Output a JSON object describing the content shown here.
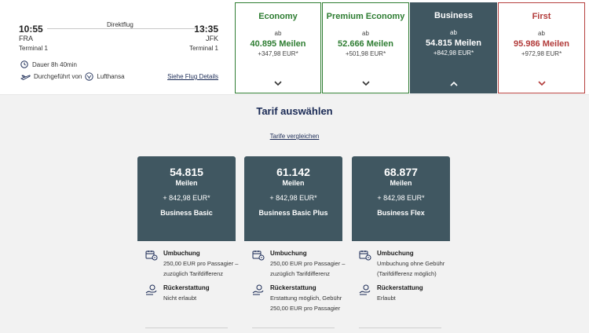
{
  "flight": {
    "type": "Direktflug",
    "departure": {
      "time": "10:55",
      "code": "FRA",
      "terminal": "Terminal 1"
    },
    "arrival": {
      "time": "13:35",
      "code": "JFK",
      "terminal": "Terminal 1"
    },
    "duration": "Dauer 8h 40min",
    "operated_by_prefix": "Durchgeführt von",
    "operator": "Lufthansa",
    "details_link": "Siehe Flug Details"
  },
  "cabins": [
    {
      "name": "Economy",
      "ab": "ab",
      "miles": "40.895 Meilen",
      "eur": "+347,98 EUR*",
      "chevron": "chevron-down"
    },
    {
      "name": "Premium Economy",
      "ab": "ab",
      "miles": "52.666 Meilen",
      "eur": "+501,98 EUR*",
      "chevron": "chevron-down"
    },
    {
      "name": "Business",
      "ab": "ab",
      "miles": "54.815 Meilen",
      "eur": "+842,98 EUR*",
      "chevron": "chevron-up",
      "selected": true
    },
    {
      "name": "First",
      "ab": "ab",
      "miles": "95.986 Meilen",
      "eur": "+972,98 EUR*",
      "chevron": "chevron-down"
    }
  ],
  "tariff": {
    "title": "Tarif auswählen",
    "compare_link": "Tarife vergleichen",
    "fares": [
      {
        "miles": "54.815",
        "unit": "Meilen",
        "eur": "+ 842,98 EUR*",
        "name": "Business Basic",
        "rebooking_title": "Umbuchung",
        "rebooking_text": "250,00 EUR pro Passagier – zuzüglich Tarifdifferenz",
        "refund_title": "Rückerstattung",
        "refund_text": "Nicht erlaubt"
      },
      {
        "miles": "61.142",
        "unit": "Meilen",
        "eur": "+ 842,98 EUR*",
        "name": "Business Basic Plus",
        "rebooking_title": "Umbuchung",
        "rebooking_text": "250,00 EUR pro Passagier – zuzüglich Tarifdifferenz",
        "refund_title": "Rückerstattung",
        "refund_text": "Erstattung möglich, Gebühr 250,00 EUR pro Passagier"
      },
      {
        "miles": "68.877",
        "unit": "Meilen",
        "eur": "+ 842,98 EUR*",
        "name": "Business Flex",
        "rebooking_title": "Umbuchung",
        "rebooking_text": "Umbuchung ohne Gebühr (Tarifdifferenz möglich)",
        "refund_title": "Rückerstattung",
        "refund_text": "Erlaubt"
      }
    ]
  },
  "colors": {
    "economy": "#2e7d32",
    "business_bg": "#405761",
    "first": "#b23b3a",
    "navy": "#1a2a55"
  },
  "icons": [
    "clock-icon",
    "plane-icon",
    "lufthansa-logo-icon",
    "chevron-down-icon",
    "chevron-up-icon",
    "rebooking-icon",
    "refund-icon"
  ]
}
